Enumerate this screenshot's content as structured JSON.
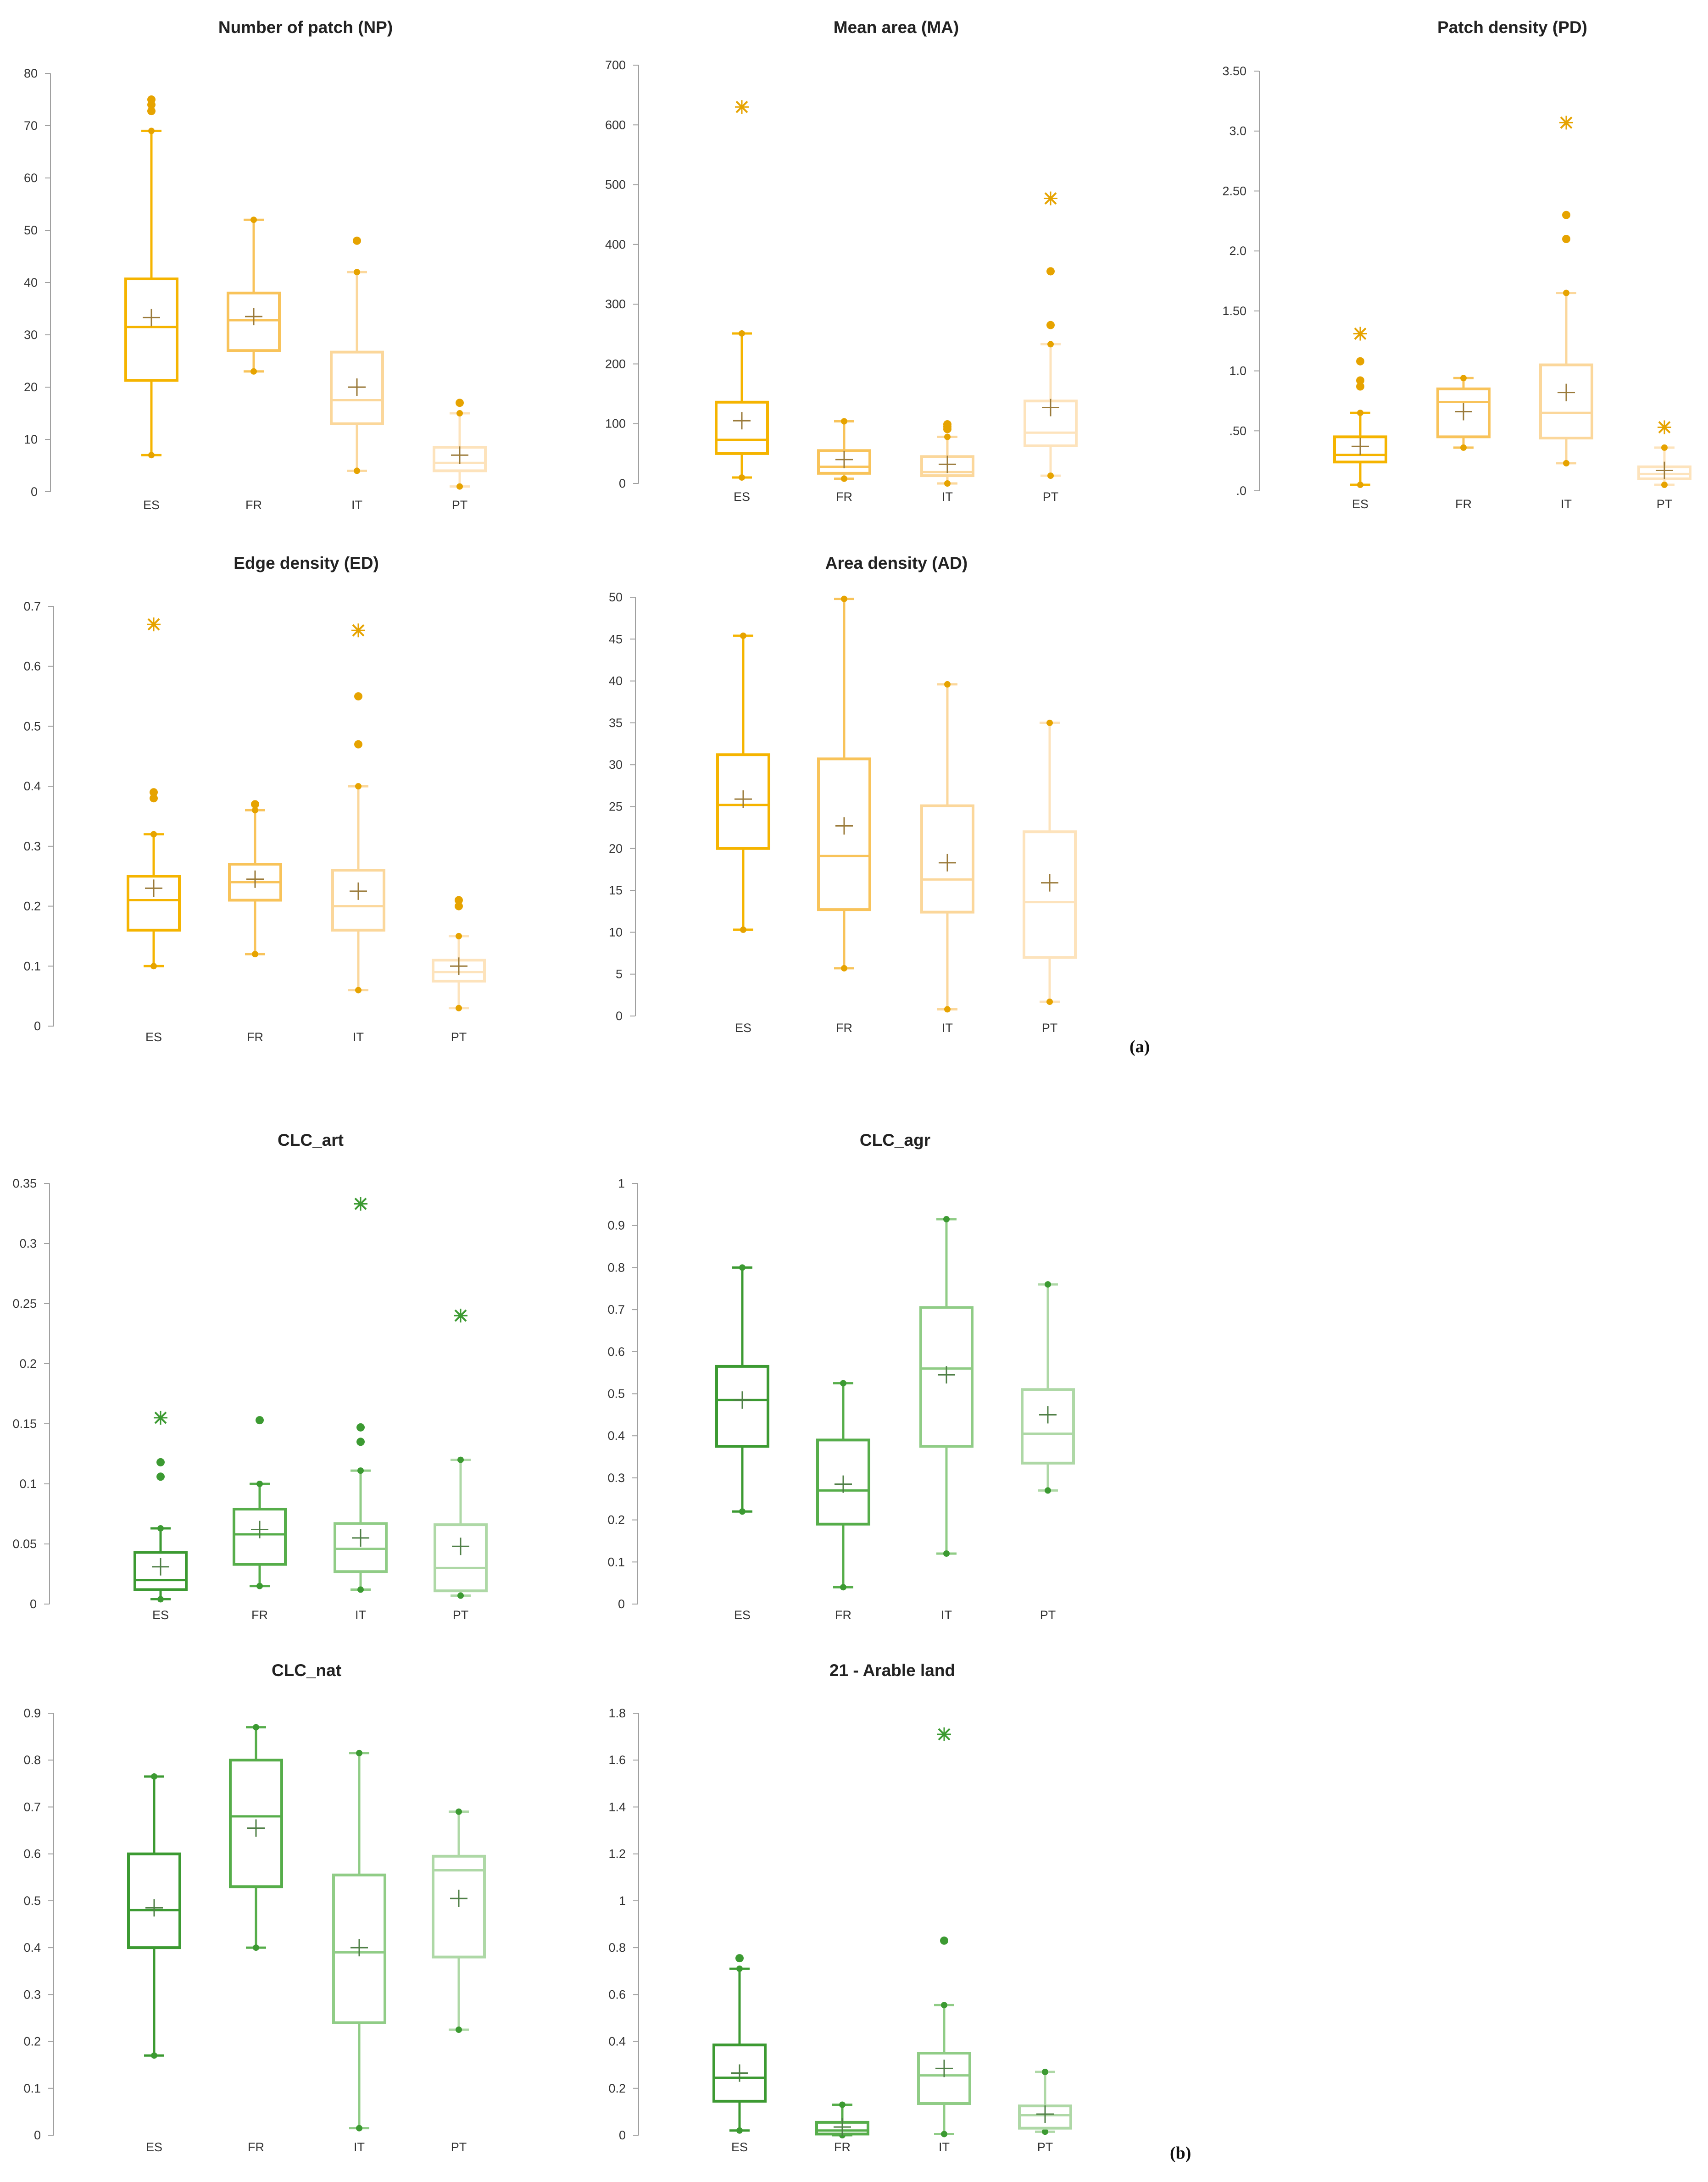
{
  "panel_labels": {
    "a": "(a)",
    "b": "(b)"
  },
  "chart_data": [
    {
      "type": "box",
      "title": "Number of patch (NP)",
      "palette": "orange",
      "categories": [
        "ES",
        "FR",
        "IT",
        "PT"
      ],
      "ylim": [
        0,
        80
      ],
      "yticks": [
        0,
        10,
        20,
        30,
        40,
        50,
        60,
        70,
        80
      ],
      "ytick_labels": [
        "0",
        "10",
        "20",
        "30",
        "40",
        "50",
        "60",
        "70",
        "80"
      ],
      "boxes": [
        {
          "cat": "ES",
          "min": 7,
          "q1": 21.3,
          "median": 31.5,
          "q3": 40.7,
          "max": 69,
          "mean": 33.3,
          "outliers": [
            72.8,
            74,
            75
          ],
          "extreme": []
        },
        {
          "cat": "FR",
          "min": 23,
          "q1": 27,
          "median": 32.8,
          "q3": 38,
          "max": 52,
          "mean": 33.5,
          "outliers": [],
          "extreme": []
        },
        {
          "cat": "IT",
          "min": 4,
          "q1": 13,
          "median": 17.5,
          "q3": 26.7,
          "max": 42,
          "mean": 20,
          "outliers": [
            48
          ],
          "extreme": []
        },
        {
          "cat": "PT",
          "min": 1,
          "q1": 4,
          "median": 5.5,
          "q3": 8.5,
          "max": 15,
          "mean": 7,
          "outliers": [
            17
          ],
          "extreme": []
        }
      ]
    },
    {
      "type": "box",
      "title": "Mean area (MA)",
      "palette": "orange",
      "categories": [
        "ES",
        "FR",
        "IT",
        "PT"
      ],
      "ylim": [
        0,
        700
      ],
      "yticks": [
        0,
        100,
        200,
        300,
        400,
        500,
        600,
        700
      ],
      "ytick_labels": [
        "0",
        "100",
        "200",
        "300",
        "400",
        "500",
        "600",
        "700"
      ],
      "boxes": [
        {
          "cat": "ES",
          "min": 10,
          "q1": 50,
          "median": 73,
          "q3": 136,
          "max": 251,
          "mean": 105,
          "outliers": [],
          "extreme": [
            630
          ]
        },
        {
          "cat": "FR",
          "min": 8,
          "q1": 17,
          "median": 28,
          "q3": 55,
          "max": 104,
          "mean": 40,
          "outliers": [],
          "extreme": []
        },
        {
          "cat": "IT",
          "min": 0,
          "q1": 13,
          "median": 19,
          "q3": 45,
          "max": 78,
          "mean": 32,
          "outliers": [
            91,
            95,
            99
          ],
          "extreme": []
        },
        {
          "cat": "PT",
          "min": 13,
          "q1": 63,
          "median": 85,
          "q3": 138,
          "max": 233,
          "mean": 127,
          "outliers": [
            265,
            355
          ],
          "extreme": [
            477
          ]
        }
      ]
    },
    {
      "type": "box",
      "title": "Patch density (PD)",
      "palette": "orange",
      "categories": [
        "ES",
        "FR",
        "IT",
        "PT"
      ],
      "ylim": [
        0,
        3.5
      ],
      "yticks": [
        0,
        0.5,
        1.0,
        1.5,
        2.0,
        2.5,
        3.0,
        3.5
      ],
      "ytick_labels": [
        ".0",
        ".50",
        "1.0",
        "1.50",
        "2.0",
        "2.50",
        "3.0",
        "3.50"
      ],
      "boxes": [
        {
          "cat": "ES",
          "min": 0.05,
          "q1": 0.24,
          "median": 0.3,
          "q3": 0.45,
          "max": 0.65,
          "mean": 0.37,
          "outliers": [
            0.87,
            0.92,
            1.08
          ],
          "extreme": [
            1.31
          ]
        },
        {
          "cat": "FR",
          "min": 0.36,
          "q1": 0.45,
          "median": 0.74,
          "q3": 0.85,
          "max": 0.94,
          "mean": 0.66,
          "outliers": [],
          "extreme": []
        },
        {
          "cat": "IT",
          "min": 0.23,
          "q1": 0.44,
          "median": 0.65,
          "q3": 1.05,
          "max": 1.65,
          "mean": 0.82,
          "outliers": [
            2.1,
            2.3
          ],
          "extreme": [
            3.07
          ]
        },
        {
          "cat": "PT",
          "min": 0.05,
          "q1": 0.1,
          "median": 0.14,
          "q3": 0.2,
          "max": 0.36,
          "mean": 0.17,
          "outliers": [],
          "extreme": [
            0.53
          ]
        }
      ]
    },
    {
      "type": "box",
      "title": "Edge density (ED)",
      "palette": "orange",
      "categories": [
        "ES",
        "FR",
        "IT",
        "PT"
      ],
      "ylim": [
        0,
        0.7
      ],
      "yticks": [
        0,
        0.1,
        0.2,
        0.3,
        0.4,
        0.5,
        0.6,
        0.7
      ],
      "ytick_labels": [
        "0",
        "0.1",
        "0.2",
        "0.3",
        "0.4",
        "0.5",
        "0.6",
        "0.7"
      ],
      "boxes": [
        {
          "cat": "ES",
          "min": 0.1,
          "q1": 0.16,
          "median": 0.21,
          "q3": 0.25,
          "max": 0.32,
          "mean": 0.23,
          "outliers": [
            0.38,
            0.39
          ],
          "extreme": [
            0.67
          ]
        },
        {
          "cat": "FR",
          "min": 0.12,
          "q1": 0.21,
          "median": 0.24,
          "q3": 0.27,
          "max": 0.36,
          "mean": 0.245,
          "outliers": [
            0.37
          ],
          "extreme": []
        },
        {
          "cat": "IT",
          "min": 0.06,
          "q1": 0.16,
          "median": 0.2,
          "q3": 0.26,
          "max": 0.4,
          "mean": 0.225,
          "outliers": [
            0.47,
            0.55
          ],
          "extreme": [
            0.66
          ]
        },
        {
          "cat": "PT",
          "min": 0.03,
          "q1": 0.075,
          "median": 0.09,
          "q3": 0.11,
          "max": 0.15,
          "mean": 0.1,
          "outliers": [
            0.2,
            0.21
          ],
          "extreme": []
        }
      ]
    },
    {
      "type": "box",
      "title": "Area density (AD)",
      "palette": "orange",
      "categories": [
        "ES",
        "FR",
        "IT",
        "PT"
      ],
      "ylim": [
        0,
        50
      ],
      "yticks": [
        0,
        5,
        10,
        15,
        20,
        25,
        30,
        35,
        40,
        45,
        50
      ],
      "ytick_labels": [
        "0",
        "5",
        "10",
        "15",
        "20",
        "25",
        "30",
        "35",
        "40",
        "45",
        "50"
      ],
      "boxes": [
        {
          "cat": "ES",
          "min": 10.3,
          "q1": 20,
          "median": 25.2,
          "q3": 31.2,
          "max": 45.4,
          "mean": 25.9,
          "outliers": [],
          "extreme": []
        },
        {
          "cat": "FR",
          "min": 5.7,
          "q1": 12.7,
          "median": 19.1,
          "q3": 30.7,
          "max": 49.8,
          "mean": 22.7,
          "outliers": [],
          "extreme": []
        },
        {
          "cat": "IT",
          "min": 0.8,
          "q1": 12.4,
          "median": 16.3,
          "q3": 25.1,
          "max": 39.6,
          "mean": 18.3,
          "outliers": [],
          "extreme": []
        },
        {
          "cat": "PT",
          "min": 1.7,
          "q1": 7,
          "median": 13.6,
          "q3": 22,
          "max": 35,
          "mean": 15.9,
          "outliers": [],
          "extreme": []
        }
      ]
    },
    {
      "type": "box",
      "title": "CLC_art",
      "palette": "green",
      "categories": [
        "ES",
        "FR",
        "IT",
        "PT"
      ],
      "ylim": [
        0,
        0.35
      ],
      "yticks": [
        0,
        0.05,
        0.1,
        0.15,
        0.2,
        0.25,
        0.3,
        0.35
      ],
      "ytick_labels": [
        "0",
        "0.05",
        "0.1",
        "0.15",
        "0.2",
        "0.25",
        "0.3",
        "0.35"
      ],
      "boxes": [
        {
          "cat": "ES",
          "min": 0.004,
          "q1": 0.012,
          "median": 0.02,
          "q3": 0.043,
          "max": 0.063,
          "mean": 0.031,
          "outliers": [
            0.106,
            0.118
          ],
          "extreme": [
            0.155
          ]
        },
        {
          "cat": "FR",
          "min": 0.015,
          "q1": 0.033,
          "median": 0.058,
          "q3": 0.079,
          "max": 0.1,
          "mean": 0.062,
          "outliers": [
            0.153
          ],
          "extreme": []
        },
        {
          "cat": "IT",
          "min": 0.012,
          "q1": 0.027,
          "median": 0.046,
          "q3": 0.067,
          "max": 0.111,
          "mean": 0.055,
          "outliers": [
            0.135,
            0.147
          ],
          "extreme": [
            0.333
          ]
        },
        {
          "cat": "PT",
          "min": 0.007,
          "q1": 0.011,
          "median": 0.03,
          "q3": 0.066,
          "max": 0.12,
          "mean": 0.048,
          "outliers": [],
          "extreme": [
            0.24
          ]
        }
      ]
    },
    {
      "type": "box",
      "title": "CLC_agr",
      "palette": "green",
      "categories": [
        "ES",
        "FR",
        "IT",
        "PT"
      ],
      "ylim": [
        0,
        1
      ],
      "yticks": [
        0,
        0.1,
        0.2,
        0.3,
        0.4,
        0.5,
        0.6,
        0.7,
        0.8,
        0.9,
        1
      ],
      "ytick_labels": [
        "0",
        "0.1",
        "0.2",
        "0.3",
        "0.4",
        "0.5",
        "0.6",
        "0.7",
        "0.8",
        "0.9",
        "1"
      ],
      "boxes": [
        {
          "cat": "ES",
          "min": 0.22,
          "q1": 0.375,
          "median": 0.485,
          "q3": 0.565,
          "max": 0.8,
          "mean": 0.485,
          "outliers": [],
          "extreme": []
        },
        {
          "cat": "FR",
          "min": 0.04,
          "q1": 0.19,
          "median": 0.27,
          "q3": 0.39,
          "max": 0.525,
          "mean": 0.285,
          "outliers": [],
          "extreme": []
        },
        {
          "cat": "IT",
          "min": 0.12,
          "q1": 0.375,
          "median": 0.56,
          "q3": 0.705,
          "max": 0.915,
          "mean": 0.545,
          "outliers": [],
          "extreme": []
        },
        {
          "cat": "PT",
          "min": 0.27,
          "q1": 0.335,
          "median": 0.405,
          "q3": 0.51,
          "max": 0.76,
          "mean": 0.45,
          "outliers": [],
          "extreme": []
        }
      ]
    },
    {
      "type": "box",
      "title": "CLC_nat",
      "palette": "green",
      "categories": [
        "ES",
        "FR",
        "IT",
        "PT"
      ],
      "ylim": [
        0,
        0.9
      ],
      "yticks": [
        0,
        0.1,
        0.2,
        0.3,
        0.4,
        0.5,
        0.6,
        0.7,
        0.8,
        0.9
      ],
      "ytick_labels": [
        "0",
        "0.1",
        "0.2",
        "0.3",
        "0.4",
        "0.5",
        "0.6",
        "0.7",
        "0.8",
        "0.9"
      ],
      "boxes": [
        {
          "cat": "ES",
          "min": 0.17,
          "q1": 0.4,
          "median": 0.48,
          "q3": 0.6,
          "max": 0.765,
          "mean": 0.485,
          "outliers": [],
          "extreme": []
        },
        {
          "cat": "FR",
          "min": 0.4,
          "q1": 0.53,
          "median": 0.68,
          "q3": 0.8,
          "max": 0.87,
          "mean": 0.655,
          "outliers": [],
          "extreme": []
        },
        {
          "cat": "IT",
          "min": 0.015,
          "q1": 0.24,
          "median": 0.39,
          "q3": 0.555,
          "max": 0.815,
          "mean": 0.4,
          "outliers": [],
          "extreme": []
        },
        {
          "cat": "PT",
          "min": 0.225,
          "q1": 0.38,
          "median": 0.565,
          "q3": 0.595,
          "max": 0.69,
          "mean": 0.505,
          "outliers": [],
          "extreme": []
        }
      ]
    },
    {
      "type": "box",
      "title": "21 - Arable land",
      "palette": "green",
      "categories": [
        "ES",
        "FR",
        "IT",
        "PT"
      ],
      "ylim": [
        0,
        1.8
      ],
      "yticks": [
        0,
        0.2,
        0.4,
        0.6,
        0.8,
        1,
        1.2,
        1.4,
        1.6,
        1.8
      ],
      "ytick_labels": [
        "0",
        "0.2",
        "0.4",
        "0.6",
        "0.8",
        "1",
        "1.2",
        "1.4",
        "1.6",
        "1.8"
      ],
      "boxes": [
        {
          "cat": "ES",
          "min": 0.02,
          "q1": 0.145,
          "median": 0.245,
          "q3": 0.385,
          "max": 0.71,
          "mean": 0.265,
          "outliers": [
            0.755
          ],
          "extreme": []
        },
        {
          "cat": "FR",
          "min": 0.0,
          "q1": 0.005,
          "median": 0.02,
          "q3": 0.055,
          "max": 0.13,
          "mean": 0.035,
          "outliers": [],
          "extreme": []
        },
        {
          "cat": "IT",
          "min": 0.005,
          "q1": 0.135,
          "median": 0.255,
          "q3": 0.35,
          "max": 0.555,
          "mean": 0.285,
          "outliers": [
            0.83
          ],
          "extreme": [
            1.71
          ]
        },
        {
          "cat": "PT",
          "min": 0.015,
          "q1": 0.03,
          "median": 0.085,
          "q3": 0.125,
          "max": 0.27,
          "mean": 0.09,
          "outliers": [],
          "extreme": []
        }
      ]
    }
  ],
  "colors": {
    "orange": [
      "#f5b400",
      "#f8c35a",
      "#fbd79b",
      "#fde3bc"
    ],
    "green": [
      "#3c9a32",
      "#56ad4a",
      "#90cc86",
      "#aed8a6"
    ],
    "marker_orange": "#e6a300",
    "mean_orange": "#9a7a3a",
    "marker_green": "#3c9a32",
    "mean_green": "#4f7f46",
    "axis": "#a0a0a0"
  }
}
